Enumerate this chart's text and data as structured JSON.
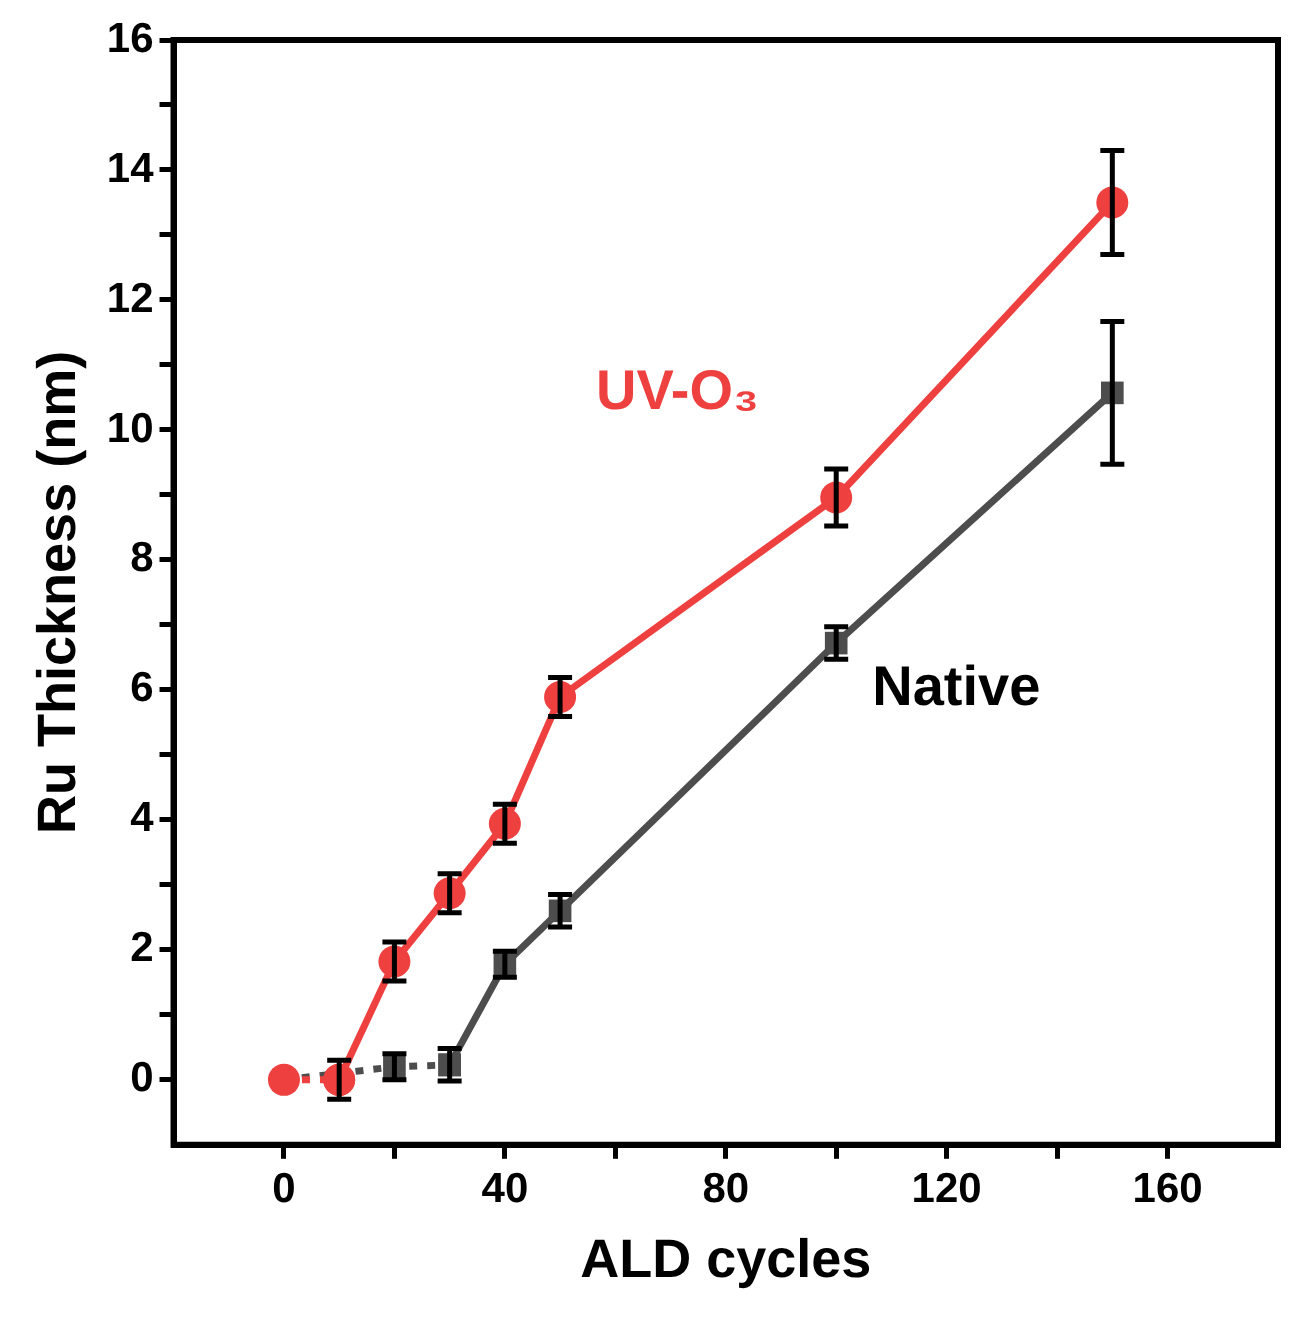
{
  "chart_data": {
    "type": "line",
    "xlabel": "ALD cycles",
    "ylabel": "Ru Thickness (nm)",
    "xlim": [
      -20,
      180
    ],
    "xticks": [
      0,
      {
        "value": 20,
        "label": null
      },
      40,
      {
        "value": 60,
        "label": null
      },
      80,
      {
        "value": 100,
        "label": null
      },
      120,
      {
        "value": 140,
        "label": null
      },
      160
    ],
    "ylim": [
      -1,
      16
    ],
    "yticks": [
      0,
      {
        "value": 1,
        "label": null
      },
      2,
      {
        "value": 3,
        "label": null
      },
      4,
      {
        "value": 5,
        "label": null
      },
      6,
      {
        "value": 7,
        "label": null
      },
      8,
      {
        "value": 9,
        "label": null
      },
      10,
      {
        "value": 11,
        "label": null
      },
      12,
      {
        "value": 13,
        "label": null
      },
      14,
      {
        "value": 15,
        "label": null
      },
      16
    ],
    "grid": false,
    "legend": false,
    "series": [
      {
        "color": "#ef4040",
        "marker": "circle",
        "line_style": "dotted",
        "x": [
          0,
          10
        ],
        "values": [
          0,
          0
        ]
      },
      {
        "color": "#4d4d4d",
        "marker": "square",
        "line_style": "dotted",
        "x": [
          0,
          10,
          20,
          30
        ],
        "values": [
          0,
          null,
          0.2,
          0.23
        ],
        "errors": [
          null,
          null,
          0.2,
          null
        ]
      },
      {
        "name": "UV-O₃",
        "color": "#ef4040",
        "marker": "circle",
        "line_style": "solid",
        "x": [
          10,
          20,
          30,
          40,
          50,
          100,
          150
        ],
        "values": [
          0,
          1.82,
          2.87,
          3.94,
          5.89,
          8.96,
          13.5
        ],
        "errors": [
          0.3,
          0.3,
          0.3,
          0.3,
          0.3,
          0.44,
          0.8
        ]
      },
      {
        "name": "Native",
        "color": "#4d4d4d",
        "marker": "square",
        "line_style": "solid",
        "x": [
          30,
          40,
          50,
          100,
          150
        ],
        "values": [
          0.23,
          1.78,
          2.6,
          6.72,
          10.57
        ],
        "errors": [
          0.25,
          0.2,
          0.25,
          0.25,
          1.1
        ]
      }
    ]
  }
}
